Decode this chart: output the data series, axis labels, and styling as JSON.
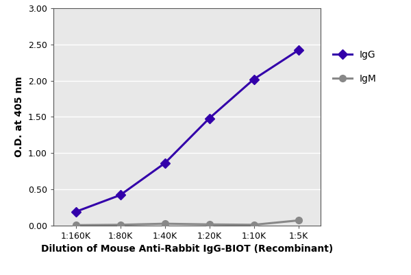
{
  "x_labels": [
    "1:160K",
    "1:80K",
    "1:40K",
    "1:20K",
    "1:10K",
    "1:5K"
  ],
  "x_values": [
    1,
    2,
    3,
    4,
    5,
    6
  ],
  "IgG_values": [
    0.19,
    0.42,
    0.86,
    1.48,
    2.02,
    2.42
  ],
  "IgM_values": [
    0.005,
    0.01,
    0.025,
    0.015,
    0.01,
    0.07
  ],
  "IgG_color": "#3300AA",
  "IgM_color": "#888888",
  "IgG_label": "IgG",
  "IgM_label": "IgM",
  "ylabel": "O.D. at 405 nm",
  "xlabel": "Dilution of Mouse Anti-Rabbit IgG-BIOT (Recombinant)",
  "ylim": [
    0,
    3.0
  ],
  "yticks": [
    0.0,
    0.5,
    1.0,
    1.5,
    2.0,
    2.5,
    3.0
  ],
  "plot_bg_color": "#e8e8e8",
  "fig_bg_color": "#ffffff",
  "grid_color": "#ffffff",
  "linewidth": 2.2,
  "markersize": 7,
  "label_fontsize": 10,
  "tick_fontsize": 9,
  "legend_fontsize": 10
}
